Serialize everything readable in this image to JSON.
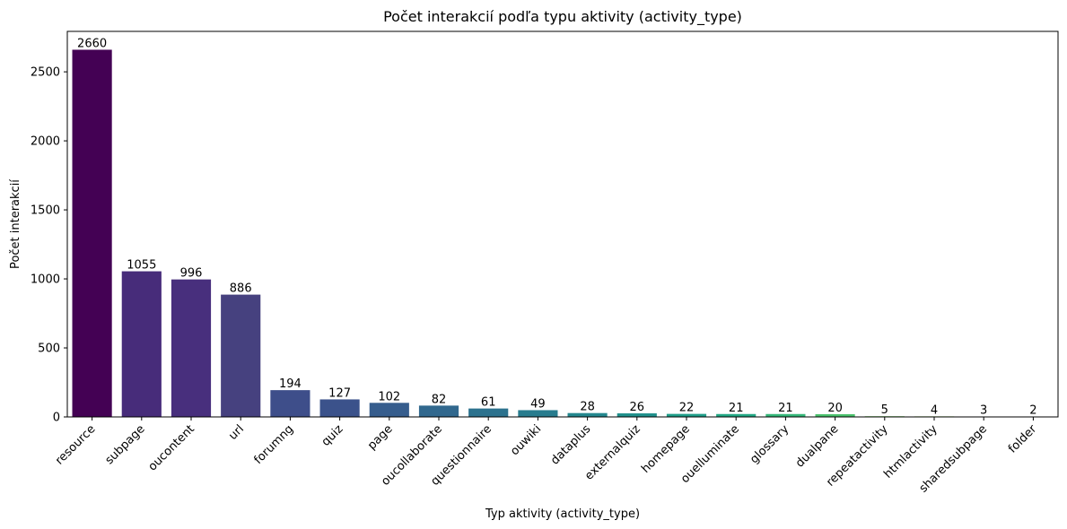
{
  "chart_data": {
    "type": "bar",
    "title": "Počet interakcií podľa typu aktivity (activity_type)",
    "xlabel": "Typ aktivity (activity_type)",
    "ylabel": "Počet interakcií",
    "categories": [
      "resource",
      "subpage",
      "oucontent",
      "url",
      "forumng",
      "quiz",
      "page",
      "oucollaborate",
      "questionnaire",
      "ouwiki",
      "dataplus",
      "externalquiz",
      "homepage",
      "ouelluminate",
      "glossary",
      "dualpane",
      "repeatactivity",
      "htmlactivity",
      "sharedsubpage",
      "folder"
    ],
    "values": [
      2660,
      1055,
      996,
      886,
      194,
      127,
      102,
      82,
      61,
      49,
      28,
      26,
      22,
      21,
      21,
      20,
      5,
      4,
      3,
      2
    ],
    "colors": [
      "#440154",
      "#472c7a",
      "#482f7d",
      "#46417f",
      "#3e4e8a",
      "#3b528b",
      "#365d8d",
      "#31688e",
      "#2c728e",
      "#287c8e",
      "#24878e",
      "#21918c",
      "#1f9e89",
      "#22a884",
      "#35b779",
      "#4ac16d",
      "#6ece58",
      "#90d743",
      "#b5de2b",
      "#dde318"
    ],
    "ylim": [
      0,
      2793
    ],
    "yticks": [
      0,
      500,
      1000,
      1500,
      2000,
      2500
    ],
    "grid": false,
    "legend": "none"
  }
}
